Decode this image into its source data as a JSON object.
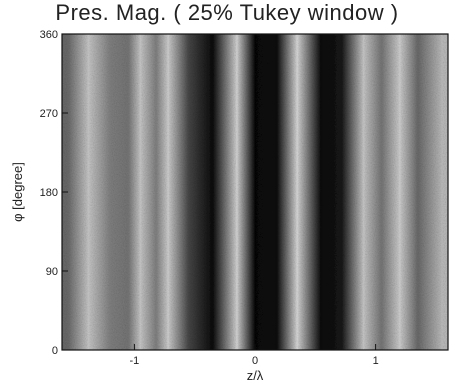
{
  "chart_data": {
    "type": "heatmap",
    "title": "Pres. Mag. ( 25% Tukey window )",
    "xlabel": "z/λ",
    "ylabel": "φ [degree]",
    "xlim": [
      -1.6,
      1.6
    ],
    "ylim": [
      0,
      360
    ],
    "x_ticks": [
      -1,
      0,
      1
    ],
    "x_tick_labels": [
      "-1",
      "0",
      "1"
    ],
    "y_ticks": [
      0,
      90,
      180,
      270,
      360
    ],
    "y_tick_labels": [
      "0",
      "90",
      "180",
      "270",
      "360"
    ],
    "colormap": "grayscale (black = low, white = high)",
    "bands": [
      {
        "z": -1.55,
        "brightness": 0.45
      },
      {
        "z": -1.38,
        "brightness": 0.85
      },
      {
        "z": -1.2,
        "brightness": 0.55
      },
      {
        "z": -1.05,
        "brightness": 0.5
      },
      {
        "z": -0.95,
        "brightness": 0.85
      },
      {
        "z": -0.82,
        "brightness": 0.55
      },
      {
        "z": -0.72,
        "brightness": 0.88
      },
      {
        "z": -0.55,
        "brightness": 0.3
      },
      {
        "z": -0.35,
        "brightness": 0.05
      },
      {
        "z": -0.15,
        "brightness": 0.9
      },
      {
        "z": 0.0,
        "brightness": 0.03
      },
      {
        "z": 0.18,
        "brightness": 0.05
      },
      {
        "z": 0.35,
        "brightness": 0.92
      },
      {
        "z": 0.55,
        "brightness": 0.04
      },
      {
        "z": 0.72,
        "brightness": 0.1
      },
      {
        "z": 0.9,
        "brightness": 0.85
      },
      {
        "z": 1.05,
        "brightness": 0.5
      },
      {
        "z": 1.2,
        "brightness": 0.88
      },
      {
        "z": 1.35,
        "brightness": 0.45
      },
      {
        "z": 1.55,
        "brightness": 0.8
      }
    ]
  }
}
